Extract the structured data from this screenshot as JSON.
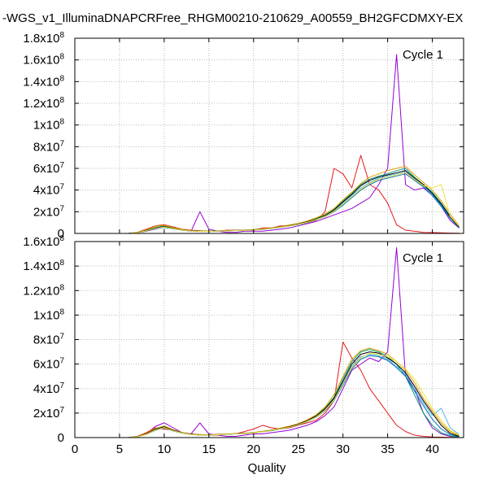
{
  "title": "-WGS_v1_IlluminaDNAPCRFree_RHGM00210-210629_A00559_BH2GFCDMXY-EX",
  "xlabel": "Quality",
  "chart_data": [
    {
      "type": "line",
      "label": "Cycle 1",
      "xlabel": "",
      "xlim": [
        0,
        43.5
      ],
      "ylim": [
        0,
        180000000
      ],
      "yticks": [
        {
          "v": 0,
          "base": "0",
          "exp": ""
        },
        {
          "v": 20000000,
          "base": "2x10",
          "exp": "7"
        },
        {
          "v": 40000000,
          "base": "4x10",
          "exp": "7"
        },
        {
          "v": 60000000,
          "base": "6x10",
          "exp": "7"
        },
        {
          "v": 80000000,
          "base": "8x10",
          "exp": "7"
        },
        {
          "v": 100000000,
          "base": "1x10",
          "exp": "8"
        },
        {
          "v": 120000000,
          "base": "1.2x10",
          "exp": "8"
        },
        {
          "v": 140000000,
          "base": "1.4x10",
          "exp": "8"
        },
        {
          "v": 160000000,
          "base": "1.6x10",
          "exp": "8"
        },
        {
          "v": 180000000,
          "base": "1.8x10",
          "exp": "8"
        }
      ],
      "grid": true,
      "x": [
        2,
        3,
        4,
        5,
        6,
        7,
        8,
        9,
        10,
        11,
        12,
        13,
        14,
        15,
        16,
        17,
        18,
        19,
        20,
        21,
        22,
        23,
        24,
        25,
        26,
        27,
        28,
        29,
        30,
        31,
        32,
        33,
        34,
        35,
        36,
        37,
        38,
        39,
        40,
        41,
        42,
        43
      ],
      "series": [
        {
          "color": "#9400d3",
          "values": [
            0,
            0,
            0,
            0,
            0,
            500000,
            2000000,
            4000000,
            6000000,
            5000000,
            3000000,
            2000000,
            20000000,
            4000000,
            2000000,
            1000000,
            1000000,
            2000000,
            2000000,
            2000000,
            3000000,
            4000000,
            5000000,
            7000000,
            9000000,
            11000000,
            14000000,
            17000000,
            20000000,
            23000000,
            28000000,
            33000000,
            45000000,
            60000000,
            165000000,
            45000000,
            40000000,
            42000000,
            35000000,
            25000000,
            12000000,
            5000000
          ]
        },
        {
          "color": "#e41a1c",
          "values": [
            0,
            0,
            0,
            0,
            0,
            1000000,
            4000000,
            7000000,
            8000000,
            6000000,
            4000000,
            3000000,
            2500000,
            2000000,
            2000000,
            3000000,
            3000000,
            3000000,
            3000000,
            5000000,
            5000000,
            7000000,
            7000000,
            9000000,
            10000000,
            12000000,
            20000000,
            60000000,
            55000000,
            42000000,
            72000000,
            45000000,
            40000000,
            28000000,
            8000000,
            3000000,
            2000000,
            1000000,
            800000,
            500000,
            300000,
            200000
          ]
        },
        {
          "color": "#009e73",
          "values": [
            0,
            0,
            0,
            0,
            0,
            800000,
            3000000,
            5500000,
            7000000,
            5000000,
            3500000,
            2500000,
            2000000,
            2000000,
            2200000,
            2500000,
            2800000,
            3000000,
            3500000,
            4000000,
            5000000,
            6000000,
            7500000,
            9000000,
            11000000,
            14000000,
            17000000,
            22000000,
            30000000,
            37000000,
            45000000,
            50000000,
            53000000,
            55000000,
            58000000,
            60000000,
            52000000,
            45000000,
            38000000,
            28000000,
            16000000,
            6000000
          ]
        },
        {
          "color": "#56b4e9",
          "values": [
            0,
            0,
            0,
            0,
            0,
            700000,
            2500000,
            5000000,
            6000000,
            4500000,
            3200000,
            2300000,
            1900000,
            1900000,
            2100000,
            2400000,
            2700000,
            2900000,
            3300000,
            3800000,
            4800000,
            5800000,
            7000000,
            8500000,
            10500000,
            13000000,
            16000000,
            21000000,
            28000000,
            35000000,
            42000000,
            47000000,
            51000000,
            53000000,
            55000000,
            57000000,
            50000000,
            44000000,
            36000000,
            26000000,
            15000000,
            5500000
          ]
        },
        {
          "color": "#e69f00",
          "values": [
            0,
            0,
            0,
            0,
            0,
            900000,
            3500000,
            6500000,
            7500000,
            5500000,
            3800000,
            2700000,
            2100000,
            2000000,
            2300000,
            2600000,
            2900000,
            3100000,
            3600000,
            4200000,
            5200000,
            6200000,
            7800000,
            9300000,
            11500000,
            14500000,
            18000000,
            23000000,
            31000000,
            38000000,
            46000000,
            52000000,
            55000000,
            58000000,
            60000000,
            62000000,
            54000000,
            47000000,
            40000000,
            30000000,
            18000000,
            7000000
          ]
        },
        {
          "color": "#0072b2",
          "values": [
            0,
            0,
            0,
            0,
            0,
            600000,
            2200000,
            4500000,
            5500000,
            4200000,
            3000000,
            2200000,
            1800000,
            1800000,
            2000000,
            2300000,
            2600000,
            2800000,
            3200000,
            3700000,
            4600000,
            5600000,
            6800000,
            8200000,
            10000000,
            12500000,
            15500000,
            20000000,
            26000000,
            33000000,
            40000000,
            45000000,
            49000000,
            51000000,
            53000000,
            55000000,
            49000000,
            43000000,
            35000000,
            25000000,
            14000000,
            5000000
          ]
        },
        {
          "color": "#000000",
          "values": [
            0,
            0,
            0,
            0,
            0,
            750000,
            2800000,
            5200000,
            6200000,
            4700000,
            3300000,
            2400000,
            1950000,
            1950000,
            2150000,
            2450000,
            2750000,
            2950000,
            3400000,
            3900000,
            4900000,
            5900000,
            7200000,
            8700000,
            10700000,
            13300000,
            16500000,
            21500000,
            29000000,
            36000000,
            44000000,
            49000000,
            52000000,
            54000000,
            56000000,
            58000000,
            51000000,
            45000000,
            37000000,
            27000000,
            15500000,
            5800000
          ]
        },
        {
          "color": "#f0e442",
          "values": [
            0,
            0,
            0,
            0,
            0,
            650000,
            2400000,
            4800000,
            5800000,
            4400000,
            3100000,
            2250000,
            1850000,
            1850000,
            2050000,
            2350000,
            2650000,
            2850000,
            3250000,
            3750000,
            4700000,
            5700000,
            6900000,
            8400000,
            10300000,
            12800000,
            15800000,
            20500000,
            27000000,
            34000000,
            41000000,
            46000000,
            50000000,
            52000000,
            54000000,
            56000000,
            50000000,
            44000000,
            42000000,
            45000000,
            16000000,
            6500000
          ]
        }
      ]
    },
    {
      "type": "line",
      "label": "Cycle 1",
      "xlabel": "Quality",
      "xlim": [
        0,
        43.5
      ],
      "ylim": [
        0,
        160000000
      ],
      "yticks": [
        {
          "v": 0,
          "base": "0",
          "exp": ""
        },
        {
          "v": 20000000,
          "base": "2x10",
          "exp": "7"
        },
        {
          "v": 40000000,
          "base": "4x10",
          "exp": "7"
        },
        {
          "v": 60000000,
          "base": "6x10",
          "exp": "7"
        },
        {
          "v": 80000000,
          "base": "8x10",
          "exp": "7"
        },
        {
          "v": 100000000,
          "base": "1x10",
          "exp": "8"
        },
        {
          "v": 120000000,
          "base": "1.2x10",
          "exp": "8"
        },
        {
          "v": 140000000,
          "base": "1.4x10",
          "exp": "8"
        },
        {
          "v": 160000000,
          "base": "1.6x10",
          "exp": "8"
        }
      ],
      "xticks": [
        0,
        5,
        10,
        15,
        20,
        25,
        30,
        35,
        40
      ],
      "grid": true,
      "x": [
        2,
        3,
        4,
        5,
        6,
        7,
        8,
        9,
        10,
        11,
        12,
        13,
        14,
        15,
        16,
        17,
        18,
        19,
        20,
        21,
        22,
        23,
        24,
        25,
        26,
        27,
        28,
        29,
        30,
        31,
        32,
        33,
        34,
        35,
        36,
        37,
        38,
        39,
        40,
        41,
        42,
        43
      ],
      "series": [
        {
          "color": "#9400d3",
          "values": [
            0,
            0,
            0,
            0,
            0,
            500000,
            3000000,
            9000000,
            12000000,
            8000000,
            4000000,
            3000000,
            12000000,
            3000000,
            2000000,
            1000000,
            1000000,
            2000000,
            3000000,
            3000000,
            4000000,
            5000000,
            6000000,
            8000000,
            10000000,
            13000000,
            18000000,
            25000000,
            40000000,
            55000000,
            60000000,
            65000000,
            62000000,
            70000000,
            155000000,
            50000000,
            40000000,
            20000000,
            8000000,
            3000000,
            1000000,
            500000
          ]
        },
        {
          "color": "#e41a1c",
          "values": [
            0,
            0,
            0,
            0,
            0,
            1000000,
            4000000,
            8000000,
            7000000,
            6000000,
            4000000,
            3000000,
            2500000,
            2000000,
            2000000,
            3000000,
            3000000,
            5000000,
            7000000,
            10000000,
            8000000,
            7000000,
            8000000,
            10000000,
            12000000,
            14000000,
            20000000,
            30000000,
            78000000,
            65000000,
            55000000,
            40000000,
            30000000,
            20000000,
            10000000,
            5000000,
            2000000,
            1000000,
            500000,
            300000,
            200000,
            100000
          ]
        },
        {
          "color": "#009e73",
          "values": [
            0,
            0,
            0,
            0,
            0,
            800000,
            3000000,
            7000000,
            9000000,
            6000000,
            4000000,
            2800000,
            2200000,
            2200000,
            2500000,
            2800000,
            3200000,
            3500000,
            4000000,
            5000000,
            6000000,
            7500000,
            9000000,
            11000000,
            14000000,
            18000000,
            24000000,
            33000000,
            48000000,
            62000000,
            70000000,
            72000000,
            70000000,
            66000000,
            60000000,
            50000000,
            35000000,
            20000000,
            10000000,
            4000000,
            1500000,
            500000
          ]
        },
        {
          "color": "#56b4e9",
          "values": [
            0,
            0,
            0,
            0,
            0,
            700000,
            2700000,
            6500000,
            8500000,
            5700000,
            3800000,
            2600000,
            2100000,
            2100000,
            2400000,
            2700000,
            3100000,
            3400000,
            3900000,
            4800000,
            5800000,
            7200000,
            8700000,
            10600000,
            13500000,
            17000000,
            23000000,
            31000000,
            45000000,
            58000000,
            66000000,
            68000000,
            67000000,
            64000000,
            58000000,
            52000000,
            40000000,
            28000000,
            18000000,
            24000000,
            8000000,
            2500000
          ]
        },
        {
          "color": "#e69f00",
          "values": [
            0,
            0,
            0,
            0,
            0,
            900000,
            3300000,
            7500000,
            9500000,
            6300000,
            4200000,
            2900000,
            2300000,
            2300000,
            2600000,
            2900000,
            3300000,
            3600000,
            4100000,
            5200000,
            6200000,
            7700000,
            9300000,
            11400000,
            14500000,
            18500000,
            25000000,
            35000000,
            50000000,
            64000000,
            71000000,
            73000000,
            71000000,
            68000000,
            62000000,
            55000000,
            45000000,
            32000000,
            22000000,
            12000000,
            5000000,
            1500000
          ]
        },
        {
          "color": "#0072b2",
          "values": [
            0,
            0,
            0,
            0,
            0,
            600000,
            2500000,
            6000000,
            8000000,
            5400000,
            3600000,
            2500000,
            2000000,
            2000000,
            2300000,
            2600000,
            3000000,
            3300000,
            3800000,
            4700000,
            5600000,
            7000000,
            8400000,
            10200000,
            13000000,
            16500000,
            22000000,
            30000000,
            43000000,
            56000000,
            64000000,
            67000000,
            66000000,
            63000000,
            57000000,
            50000000,
            38000000,
            26000000,
            15000000,
            7000000,
            2500000,
            800000
          ]
        },
        {
          "color": "#000000",
          "values": [
            0,
            0,
            0,
            0,
            0,
            750000,
            2900000,
            6800000,
            8800000,
            5900000,
            3900000,
            2700000,
            2150000,
            2150000,
            2450000,
            2750000,
            3150000,
            3450000,
            3950000,
            4900000,
            5900000,
            7300000,
            8800000,
            10800000,
            13800000,
            17500000,
            23500000,
            32000000,
            46000000,
            60000000,
            68000000,
            70000000,
            69000000,
            65000000,
            60000000,
            53000000,
            42000000,
            30000000,
            20000000,
            10000000,
            3500000,
            1000000
          ]
        },
        {
          "color": "#f0e442",
          "values": [
            0,
            0,
            0,
            0,
            0,
            650000,
            2600000,
            6200000,
            8200000,
            5500000,
            3700000,
            2550000,
            2050000,
            2050000,
            2350000,
            2650000,
            3050000,
            3350000,
            3850000,
            4750000,
            5700000,
            7100000,
            8500000,
            10400000,
            13300000,
            16800000,
            22500000,
            30500000,
            44000000,
            57000000,
            65000000,
            69000000,
            68000000,
            66000000,
            62000000,
            56000000,
            48000000,
            36000000,
            24000000,
            14000000,
            6000000,
            2000000
          ]
        }
      ]
    }
  ]
}
